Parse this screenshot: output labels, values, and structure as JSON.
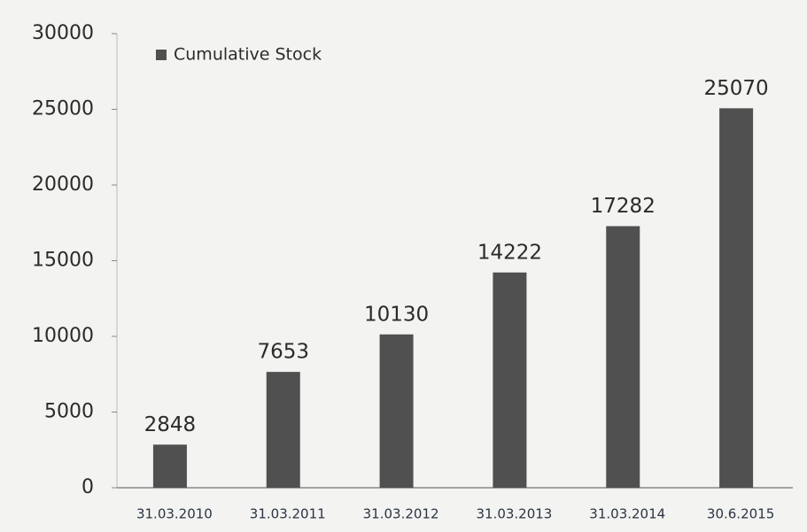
{
  "chart_data": {
    "type": "bar",
    "categories": [
      "31.03.2010",
      "31.03.2011",
      "31.03.2012",
      "31.03.2013",
      "31.03.2014",
      "30.6.2015"
    ],
    "series": [
      {
        "name": "Cumulative Stock",
        "color": "#505050",
        "values": [
          2848,
          7653,
          10130,
          14222,
          17282,
          25070
        ]
      }
    ],
    "ylim": [
      0,
      30000
    ],
    "yticks": [
      0,
      5000,
      10000,
      15000,
      20000,
      25000,
      30000
    ],
    "legend": "top-left",
    "grid": false
  }
}
